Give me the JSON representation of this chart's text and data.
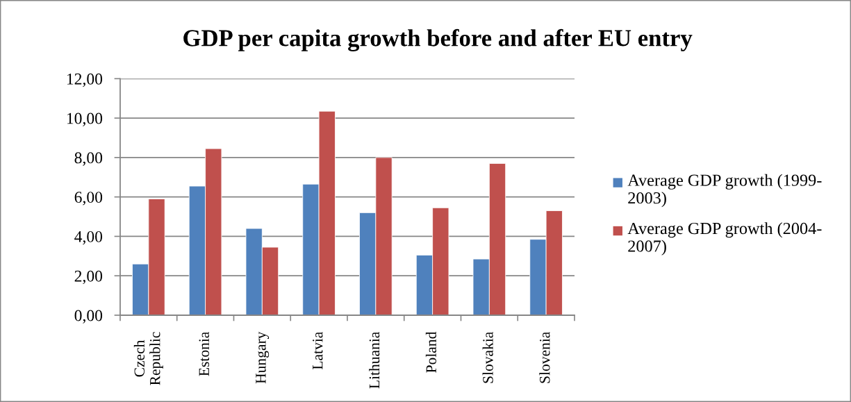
{
  "chart_data": {
    "type": "bar",
    "title": "GDP per capita growth before and after EU entry",
    "categories": [
      "Czech Republic",
      "Estonia",
      "Hungary",
      "Latvia",
      "Lithuania",
      "Poland",
      "Slovakia",
      "Slovenia"
    ],
    "series": [
      {
        "name": "Average GDP growth (1999-2003)",
        "color": "#4f81bd",
        "values": [
          2.6,
          6.55,
          4.4,
          6.65,
          5.2,
          3.05,
          2.85,
          3.85
        ]
      },
      {
        "name": "Average GDP growth (2004-2007)",
        "color": "#c0504d",
        "values": [
          5.9,
          8.45,
          3.45,
          10.35,
          8.0,
          5.45,
          7.7,
          5.3
        ]
      }
    ],
    "ylim": [
      0,
      12
    ],
    "yticks": [
      {
        "value": 0,
        "label": "0,00"
      },
      {
        "value": 2,
        "label": "2,00"
      },
      {
        "value": 4,
        "label": "4,00"
      },
      {
        "value": 6,
        "label": "6,00"
      },
      {
        "value": 8,
        "label": "8,00"
      },
      {
        "value": 10,
        "label": "10,00"
      },
      {
        "value": 12,
        "label": "12,00"
      }
    ],
    "grid": "y",
    "legend": "right"
  }
}
